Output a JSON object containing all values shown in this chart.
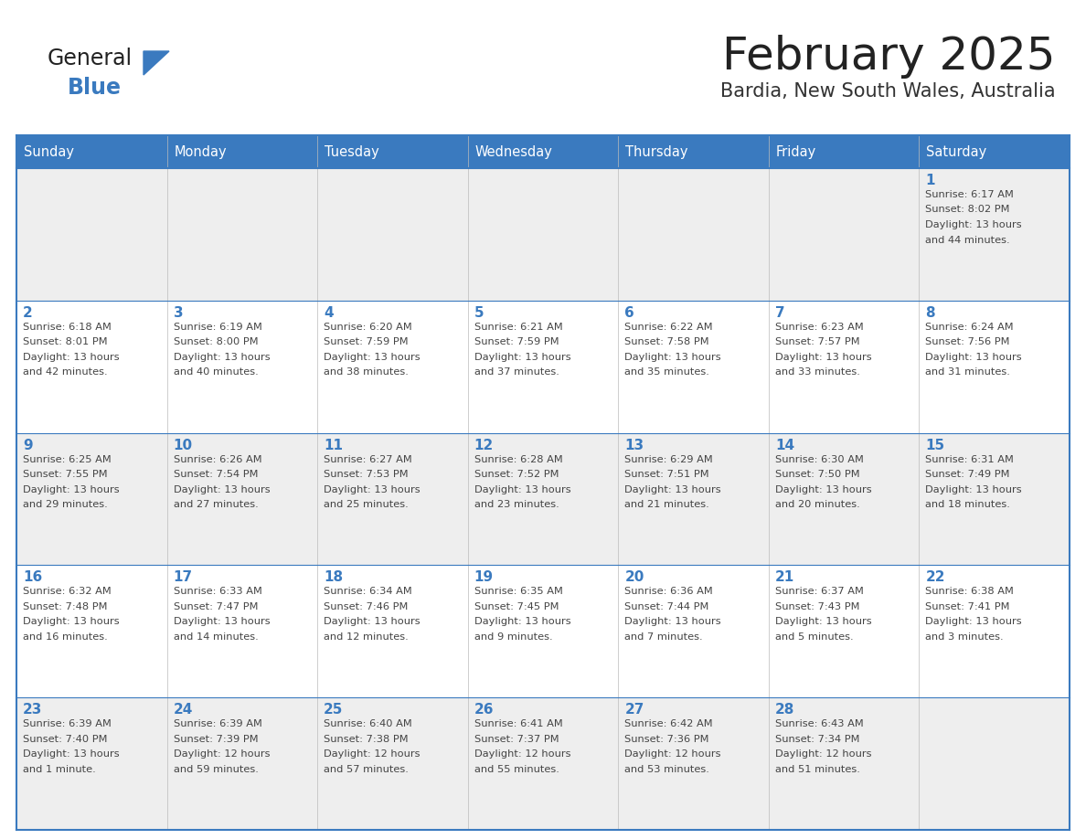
{
  "title": "February 2025",
  "subtitle": "Bardia, New South Wales, Australia",
  "header_bg": "#3a7abf",
  "header_text": "#ffffff",
  "row_bg_odd": "#eeeeee",
  "row_bg_even": "#ffffff",
  "border_color": "#3a7abf",
  "day_number_color": "#3a7abf",
  "info_text_color": "#444444",
  "days_of_week": [
    "Sunday",
    "Monday",
    "Tuesday",
    "Wednesday",
    "Thursday",
    "Friday",
    "Saturday"
  ],
  "logo_general_color": "#222222",
  "logo_blue_color": "#3a7abf",
  "title_color": "#222222",
  "subtitle_color": "#333333",
  "weeks": [
    [
      {
        "day": null,
        "lines": []
      },
      {
        "day": null,
        "lines": []
      },
      {
        "day": null,
        "lines": []
      },
      {
        "day": null,
        "lines": []
      },
      {
        "day": null,
        "lines": []
      },
      {
        "day": null,
        "lines": []
      },
      {
        "day": "1",
        "lines": [
          "Sunrise: 6:17 AM",
          "Sunset: 8:02 PM",
          "Daylight: 13 hours",
          "and 44 minutes."
        ]
      }
    ],
    [
      {
        "day": "2",
        "lines": [
          "Sunrise: 6:18 AM",
          "Sunset: 8:01 PM",
          "Daylight: 13 hours",
          "and 42 minutes."
        ]
      },
      {
        "day": "3",
        "lines": [
          "Sunrise: 6:19 AM",
          "Sunset: 8:00 PM",
          "Daylight: 13 hours",
          "and 40 minutes."
        ]
      },
      {
        "day": "4",
        "lines": [
          "Sunrise: 6:20 AM",
          "Sunset: 7:59 PM",
          "Daylight: 13 hours",
          "and 38 minutes."
        ]
      },
      {
        "day": "5",
        "lines": [
          "Sunrise: 6:21 AM",
          "Sunset: 7:59 PM",
          "Daylight: 13 hours",
          "and 37 minutes."
        ]
      },
      {
        "day": "6",
        "lines": [
          "Sunrise: 6:22 AM",
          "Sunset: 7:58 PM",
          "Daylight: 13 hours",
          "and 35 minutes."
        ]
      },
      {
        "day": "7",
        "lines": [
          "Sunrise: 6:23 AM",
          "Sunset: 7:57 PM",
          "Daylight: 13 hours",
          "and 33 minutes."
        ]
      },
      {
        "day": "8",
        "lines": [
          "Sunrise: 6:24 AM",
          "Sunset: 7:56 PM",
          "Daylight: 13 hours",
          "and 31 minutes."
        ]
      }
    ],
    [
      {
        "day": "9",
        "lines": [
          "Sunrise: 6:25 AM",
          "Sunset: 7:55 PM",
          "Daylight: 13 hours",
          "and 29 minutes."
        ]
      },
      {
        "day": "10",
        "lines": [
          "Sunrise: 6:26 AM",
          "Sunset: 7:54 PM",
          "Daylight: 13 hours",
          "and 27 minutes."
        ]
      },
      {
        "day": "11",
        "lines": [
          "Sunrise: 6:27 AM",
          "Sunset: 7:53 PM",
          "Daylight: 13 hours",
          "and 25 minutes."
        ]
      },
      {
        "day": "12",
        "lines": [
          "Sunrise: 6:28 AM",
          "Sunset: 7:52 PM",
          "Daylight: 13 hours",
          "and 23 minutes."
        ]
      },
      {
        "day": "13",
        "lines": [
          "Sunrise: 6:29 AM",
          "Sunset: 7:51 PM",
          "Daylight: 13 hours",
          "and 21 minutes."
        ]
      },
      {
        "day": "14",
        "lines": [
          "Sunrise: 6:30 AM",
          "Sunset: 7:50 PM",
          "Daylight: 13 hours",
          "and 20 minutes."
        ]
      },
      {
        "day": "15",
        "lines": [
          "Sunrise: 6:31 AM",
          "Sunset: 7:49 PM",
          "Daylight: 13 hours",
          "and 18 minutes."
        ]
      }
    ],
    [
      {
        "day": "16",
        "lines": [
          "Sunrise: 6:32 AM",
          "Sunset: 7:48 PM",
          "Daylight: 13 hours",
          "and 16 minutes."
        ]
      },
      {
        "day": "17",
        "lines": [
          "Sunrise: 6:33 AM",
          "Sunset: 7:47 PM",
          "Daylight: 13 hours",
          "and 14 minutes."
        ]
      },
      {
        "day": "18",
        "lines": [
          "Sunrise: 6:34 AM",
          "Sunset: 7:46 PM",
          "Daylight: 13 hours",
          "and 12 minutes."
        ]
      },
      {
        "day": "19",
        "lines": [
          "Sunrise: 6:35 AM",
          "Sunset: 7:45 PM",
          "Daylight: 13 hours",
          "and 9 minutes."
        ]
      },
      {
        "day": "20",
        "lines": [
          "Sunrise: 6:36 AM",
          "Sunset: 7:44 PM",
          "Daylight: 13 hours",
          "and 7 minutes."
        ]
      },
      {
        "day": "21",
        "lines": [
          "Sunrise: 6:37 AM",
          "Sunset: 7:43 PM",
          "Daylight: 13 hours",
          "and 5 minutes."
        ]
      },
      {
        "day": "22",
        "lines": [
          "Sunrise: 6:38 AM",
          "Sunset: 7:41 PM",
          "Daylight: 13 hours",
          "and 3 minutes."
        ]
      }
    ],
    [
      {
        "day": "23",
        "lines": [
          "Sunrise: 6:39 AM",
          "Sunset: 7:40 PM",
          "Daylight: 13 hours",
          "and 1 minute."
        ]
      },
      {
        "day": "24",
        "lines": [
          "Sunrise: 6:39 AM",
          "Sunset: 7:39 PM",
          "Daylight: 12 hours",
          "and 59 minutes."
        ]
      },
      {
        "day": "25",
        "lines": [
          "Sunrise: 6:40 AM",
          "Sunset: 7:38 PM",
          "Daylight: 12 hours",
          "and 57 minutes."
        ]
      },
      {
        "day": "26",
        "lines": [
          "Sunrise: 6:41 AM",
          "Sunset: 7:37 PM",
          "Daylight: 12 hours",
          "and 55 minutes."
        ]
      },
      {
        "day": "27",
        "lines": [
          "Sunrise: 6:42 AM",
          "Sunset: 7:36 PM",
          "Daylight: 12 hours",
          "and 53 minutes."
        ]
      },
      {
        "day": "28",
        "lines": [
          "Sunrise: 6:43 AM",
          "Sunset: 7:34 PM",
          "Daylight: 12 hours",
          "and 51 minutes."
        ]
      },
      {
        "day": null,
        "lines": []
      }
    ]
  ]
}
